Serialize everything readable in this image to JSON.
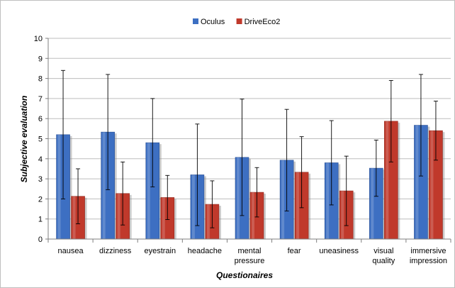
{
  "chart_data": {
    "type": "bar",
    "title": "",
    "xlabel": "Questionaires",
    "ylabel": "Subjective evaluation",
    "ylim": [
      0,
      10
    ],
    "yticks": [
      0,
      1,
      2,
      3,
      4,
      5,
      6,
      7,
      8,
      9,
      10
    ],
    "legend_position": "top-center",
    "grid": "horizontal",
    "categories": [
      [
        "nausea"
      ],
      [
        "dizziness"
      ],
      [
        "eyestrain"
      ],
      [
        "headache"
      ],
      [
        "mental",
        "pressure"
      ],
      [
        "fear"
      ],
      [
        "uneasiness"
      ],
      [
        "visual",
        "quality"
      ],
      [
        "immersive",
        "impression"
      ]
    ],
    "series": [
      {
        "name": "Oculus",
        "color": "#3d6fc2",
        "values": [
          5.2,
          5.33,
          4.8,
          3.2,
          4.07,
          3.93,
          3.8,
          3.53,
          5.67
        ],
        "error": [
          3.2,
          2.87,
          2.2,
          2.53,
          2.9,
          2.53,
          2.1,
          1.4,
          2.53
        ]
      },
      {
        "name": "DriveEco2",
        "color": "#c0392b",
        "values": [
          2.13,
          2.27,
          2.07,
          1.73,
          2.33,
          3.33,
          2.4,
          5.87,
          5.4
        ],
        "error": [
          1.37,
          1.57,
          1.1,
          1.17,
          1.23,
          1.77,
          1.73,
          2.03,
          1.47
        ]
      }
    ]
  }
}
